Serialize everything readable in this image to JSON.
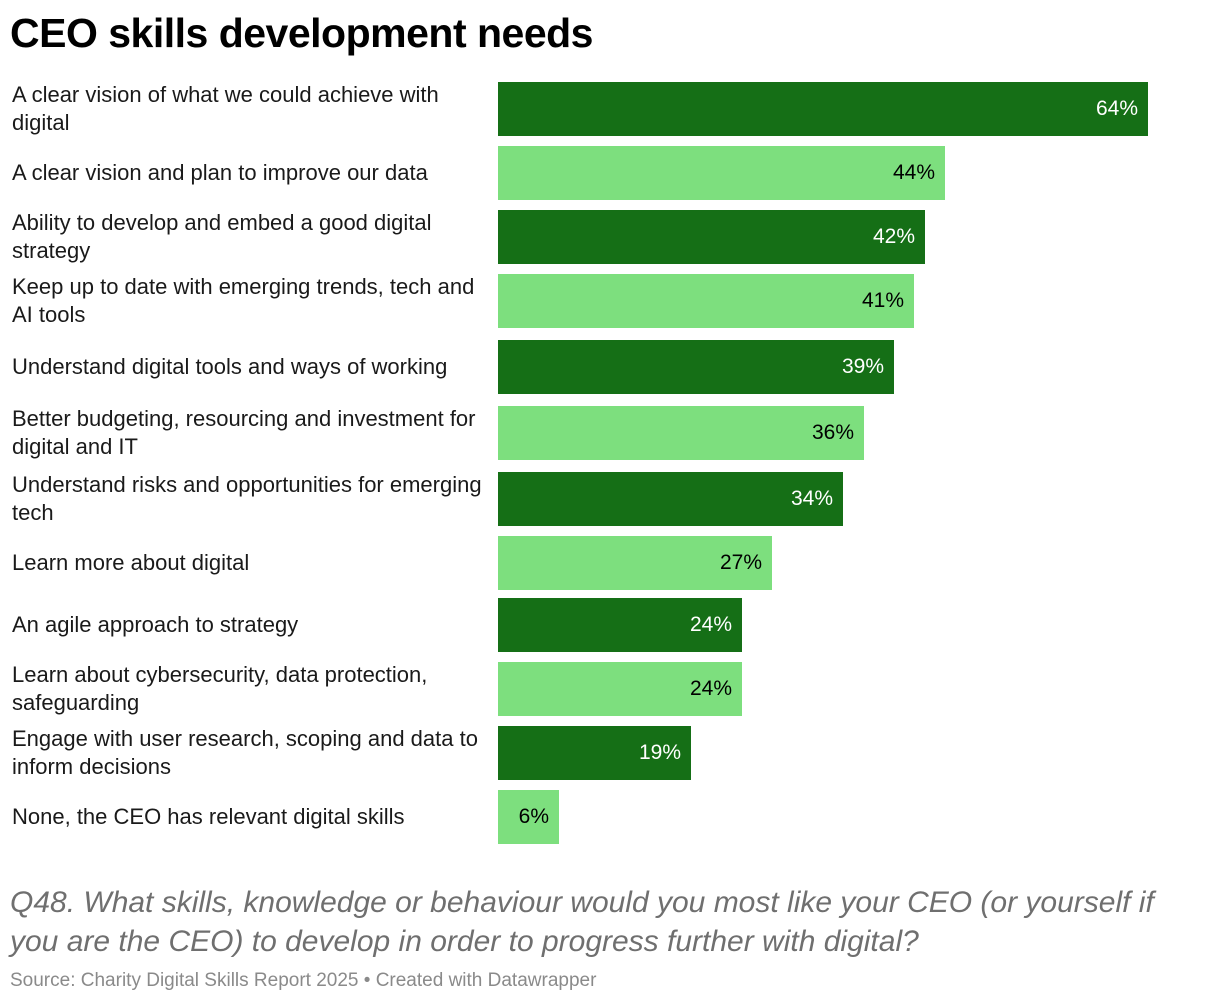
{
  "title": "CEO skills development needs",
  "question": "Q48. What skills, knowledge or behaviour would you most like your CEO (or yourself if you are the CEO) to develop in order to progress further with digital?",
  "source": "Source: Charity Digital Skills Report 2025 • Created with Datawrapper",
  "colors": {
    "dark": "#156f16",
    "light": "#7ddf7e",
    "dark_text": "#ffffff",
    "light_text": "#000000"
  },
  "chart_data": {
    "type": "bar",
    "orientation": "horizontal",
    "title": "CEO skills development needs",
    "categories": [
      "A clear vision of what we could achieve with digital",
      "A clear vision and plan to improve our data",
      "Ability to develop and embed a good digital strategy",
      "Keep up to date with emerging trends, tech and AI tools",
      "Understand digital tools and ways of working",
      "Better budgeting, resourcing and investment for digital and IT",
      "Understand risks and opportunities for emerging tech",
      "Learn more about digital",
      "An agile approach to strategy",
      "Learn about cybersecurity, data protection, safeguarding",
      "Engage with user research, scoping and data to inform decisions",
      "None, the CEO has relevant digital skills"
    ],
    "values": [
      64,
      44,
      42,
      41,
      39,
      36,
      34,
      27,
      24,
      24,
      19,
      6
    ],
    "value_labels": [
      "64%",
      "44%",
      "42%",
      "41%",
      "39%",
      "36%",
      "34%",
      "27%",
      "24%",
      "24%",
      "19%",
      "6%"
    ],
    "xlim": [
      0,
      64
    ],
    "grid": false,
    "legend": "none"
  }
}
